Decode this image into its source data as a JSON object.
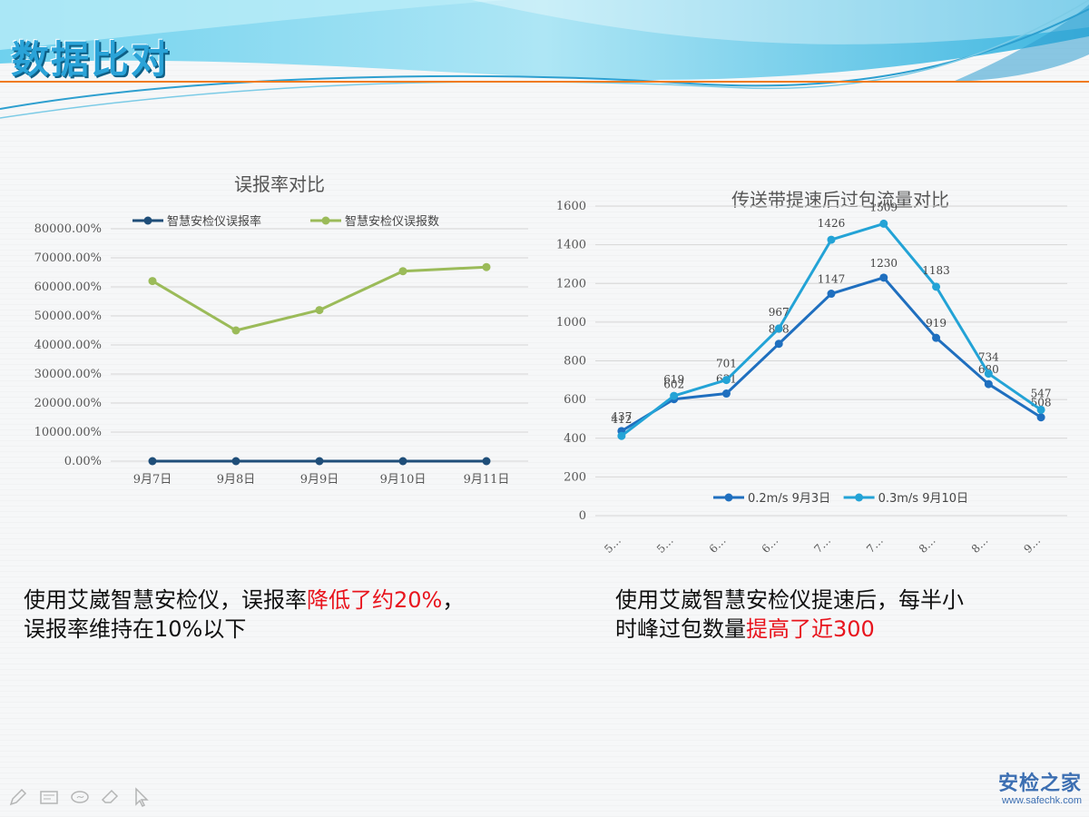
{
  "slide": {
    "title": "数据比对",
    "caption_left": {
      "prefix": "使用艾崴智慧安检仪，误报率",
      "highlight": "降低了约20%",
      "suffix": "，",
      "line2": "误报率维持在10%以下"
    },
    "caption_right": {
      "line1": "使用艾崴智慧安检仪提速后，每半小",
      "prefix2": "时峰过包数量",
      "highlight": "提高了近300"
    },
    "watermark": {
      "main": "安检之家",
      "sub": "www.safechk.com"
    },
    "toolbar_icons": [
      "pen-icon",
      "slides-icon",
      "ink-icon",
      "eraser-icon",
      "pointer-icon"
    ]
  },
  "chart_data": [
    {
      "type": "line",
      "title": "误报率对比",
      "categories": [
        "9月7日",
        "9月8日",
        "9月9日",
        "9月10日",
        "9月11日"
      ],
      "series": [
        {
          "name": "智慧安检仪误报率",
          "values": [
            0,
            0,
            0,
            0,
            0
          ],
          "color": "#1f4e79"
        },
        {
          "name": "智慧安检仪误报数",
          "values": [
            62000,
            45000,
            52000,
            65400,
            66800
          ],
          "color": "#9bbb59"
        }
      ],
      "ylim": [
        0,
        80000
      ],
      "yticks": [
        "0.00%",
        "10000.00%",
        "20000.00%",
        "30000.00%",
        "40000.00%",
        "50000.00%",
        "60000.00%",
        "70000.00%",
        "80000.00%"
      ],
      "grid": true,
      "legend": "top"
    },
    {
      "type": "line",
      "title": "传送带提速后过包流量对比",
      "categories": [
        "5…",
        "5…",
        "6…",
        "6…",
        "7…",
        "7…",
        "8…",
        "8…",
        "9…"
      ],
      "series": [
        {
          "name": "0.2m/s 9月3日",
          "values": [
            437,
            602,
            631,
            888,
            1147,
            1230,
            919,
            680,
            508
          ],
          "labels": [
            "437",
            "602",
            "631",
            "888",
            "1147",
            "1230",
            "919",
            "680",
            "508"
          ],
          "color": "#1f6fbf"
        },
        {
          "name": "0.3m/s 9月10日",
          "values": [
            412,
            619,
            701,
            967,
            1426,
            1509,
            1183,
            734,
            547
          ],
          "labels": [
            "412",
            "619",
            "701",
            "967",
            "1426",
            "1509",
            "1183",
            "734",
            "547"
          ],
          "color": "#23a3d6"
        }
      ],
      "ylim": [
        0,
        1600
      ],
      "yticks": [
        "0",
        "200",
        "400",
        "600",
        "800",
        "1000",
        "1200",
        "1400",
        "1600"
      ],
      "grid": true,
      "legend": "bottom"
    }
  ]
}
